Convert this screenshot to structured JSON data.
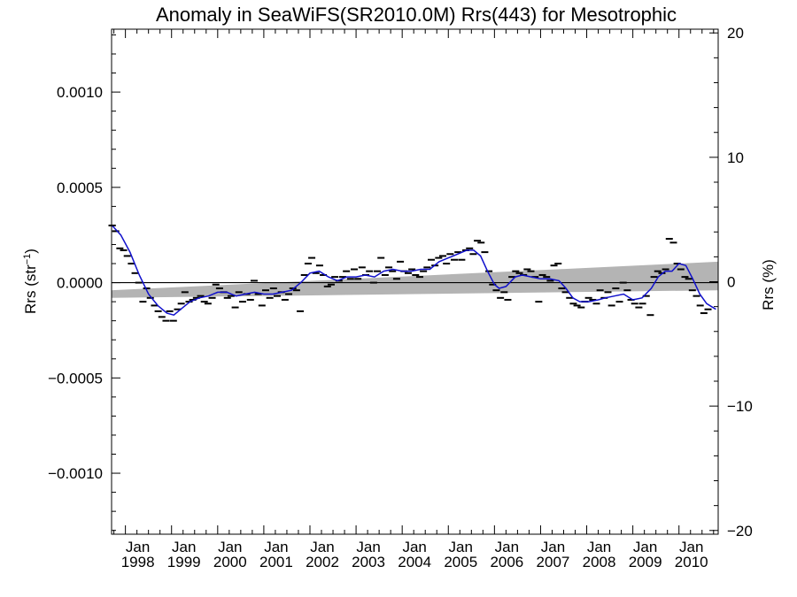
{
  "chart_data": {
    "type": "scatter",
    "title": "Anomaly in SeaWiFS(SR2010.0M) Rrs(443) for Mesotrophic",
    "ylabel_left": "Rrs (str",
    "ylabel_left_sup": "−1",
    "ylabel_left_close": ")",
    "ylabel_right": "Rrs (%)",
    "xlim": [
      1997.7,
      2010.85
    ],
    "ylim": [
      -0.00132,
      0.00133
    ],
    "ylim_right": [
      -20.3,
      20.3
    ],
    "yticks": [
      {
        "v": 0.001,
        "label": "0.0010"
      },
      {
        "v": 0.0005,
        "label": "0.0005"
      },
      {
        "v": 0.0,
        "label": "0.0000"
      },
      {
        "v": -0.0005,
        "label": "−0.0005"
      },
      {
        "v": -0.001,
        "label": "−0.0010"
      }
    ],
    "yticks_right": [
      {
        "v": 20,
        "label": "20"
      },
      {
        "v": 10,
        "label": "10"
      },
      {
        "v": 0,
        "label": "0"
      },
      {
        "v": -10,
        "label": "−10"
      },
      {
        "v": -20,
        "label": "−20"
      }
    ],
    "xticks": [
      {
        "v": 1998,
        "month": "Jan",
        "year": "1998"
      },
      {
        "v": 1999,
        "month": "Jan",
        "year": "1999"
      },
      {
        "v": 2000,
        "month": "Jan",
        "year": "2000"
      },
      {
        "v": 2001,
        "month": "Jan",
        "year": "2001"
      },
      {
        "v": 2002,
        "month": "Jan",
        "year": "2002"
      },
      {
        "v": 2003,
        "month": "Jan",
        "year": "2003"
      },
      {
        "v": 2004,
        "month": "Jan",
        "year": "2004"
      },
      {
        "v": 2005,
        "month": "Jan",
        "year": "2005"
      },
      {
        "v": 2006,
        "month": "Jan",
        "year": "2006"
      },
      {
        "v": 2007,
        "month": "Jan",
        "year": "2007"
      },
      {
        "v": 2008,
        "month": "Jan",
        "year": "2008"
      },
      {
        "v": 2009,
        "month": "Jan",
        "year": "2009"
      },
      {
        "v": 2010,
        "month": "Jan",
        "year": "2010"
      }
    ],
    "monthly_anomalies": [
      [
        1997.71,
        0.0003
      ],
      [
        1997.79,
        0.00027
      ],
      [
        1997.88,
        0.00018
      ],
      [
        1997.96,
        0.00017
      ],
      [
        1998.04,
        0.00014
      ],
      [
        1998.13,
        0.0001
      ],
      [
        1998.21,
        5e-05
      ],
      [
        1998.29,
        0.0
      ],
      [
        1998.38,
        -0.0001
      ],
      [
        1998.46,
        -3e-05
      ],
      [
        1998.54,
        -8e-05
      ],
      [
        1998.63,
        -0.00012
      ],
      [
        1998.71,
        -0.00015
      ],
      [
        1998.79,
        -0.00018
      ],
      [
        1998.88,
        -0.0002
      ],
      [
        1998.96,
        -0.00015
      ],
      [
        1999.04,
        -0.0002
      ],
      [
        1999.13,
        -0.00014
      ],
      [
        1999.21,
        -0.00011
      ],
      [
        1999.29,
        -5e-05
      ],
      [
        1999.38,
        -0.0001
      ],
      [
        1999.46,
        -9e-05
      ],
      [
        1999.54,
        -8e-05
      ],
      [
        1999.63,
        -7e-05
      ],
      [
        1999.71,
        -0.0001
      ],
      [
        1999.79,
        -0.00011
      ],
      [
        1999.88,
        -8e-05
      ],
      [
        1999.96,
        -1e-05
      ],
      [
        2000.04,
        -3e-05
      ],
      [
        2000.13,
        -5e-05
      ],
      [
        2000.21,
        -8e-05
      ],
      [
        2000.29,
        -7e-05
      ],
      [
        2000.38,
        -0.00013
      ],
      [
        2000.46,
        -5e-05
      ],
      [
        2000.54,
        -0.0001
      ],
      [
        2000.63,
        -6e-05
      ],
      [
        2000.71,
        -9e-05
      ],
      [
        2000.79,
        1e-05
      ],
      [
        2000.88,
        -6e-05
      ],
      [
        2000.96,
        -0.00012
      ],
      [
        2001.04,
        -4e-05
      ],
      [
        2001.13,
        -8e-05
      ],
      [
        2001.21,
        -3e-05
      ],
      [
        2001.29,
        -7e-05
      ],
      [
        2001.38,
        -5e-05
      ],
      [
        2001.46,
        -9e-05
      ],
      [
        2001.54,
        -6e-05
      ],
      [
        2001.63,
        -3e-05
      ],
      [
        2001.71,
        -4e-05
      ],
      [
        2001.79,
        -0.00015
      ],
      [
        2001.88,
        4e-05
      ],
      [
        2001.96,
        0.0001
      ],
      [
        2002.04,
        0.00013
      ],
      [
        2002.13,
        5e-05
      ],
      [
        2002.21,
        9e-05
      ],
      [
        2002.29,
        4e-05
      ],
      [
        2002.38,
        -2e-05
      ],
      [
        2002.46,
        -1e-05
      ],
      [
        2002.54,
        3e-05
      ],
      [
        2002.63,
        1e-05
      ],
      [
        2002.71,
        3e-05
      ],
      [
        2002.79,
        6e-05
      ],
      [
        2002.88,
        2e-05
      ],
      [
        2002.96,
        7e-05
      ],
      [
        2003.04,
        2e-05
      ],
      [
        2003.13,
        8e-05
      ],
      [
        2003.21,
        4e-05
      ],
      [
        2003.29,
        6e-05
      ],
      [
        2003.38,
        0.0
      ],
      [
        2003.46,
        6e-05
      ],
      [
        2003.54,
        0.00013
      ],
      [
        2003.63,
        4e-05
      ],
      [
        2003.71,
        8e-05
      ],
      [
        2003.79,
        6e-05
      ],
      [
        2003.88,
        2e-05
      ],
      [
        2003.96,
        0.00011
      ],
      [
        2004.04,
        6e-05
      ],
      [
        2004.13,
        5e-05
      ],
      [
        2004.21,
        7e-05
      ],
      [
        2004.29,
        4e-05
      ],
      [
        2004.38,
        3e-05
      ],
      [
        2004.46,
        6e-05
      ],
      [
        2004.54,
        8e-05
      ],
      [
        2004.63,
        0.00012
      ],
      [
        2004.71,
        9e-05
      ],
      [
        2004.79,
        0.00013
      ],
      [
        2004.88,
        0.00014
      ],
      [
        2004.96,
        0.0001
      ],
      [
        2005.04,
        0.00015
      ],
      [
        2005.13,
        0.00012
      ],
      [
        2005.21,
        0.00016
      ],
      [
        2005.29,
        0.00012
      ],
      [
        2005.38,
        0.00017
      ],
      [
        2005.46,
        0.00018
      ],
      [
        2005.54,
        0.00015
      ],
      [
        2005.63,
        0.00022
      ],
      [
        2005.71,
        0.00021
      ],
      [
        2005.79,
        0.00016
      ],
      [
        2005.88,
        6e-05
      ],
      [
        2005.96,
        -1e-05
      ],
      [
        2006.04,
        -4e-05
      ],
      [
        2006.13,
        -8e-05
      ],
      [
        2006.21,
        -5e-05
      ],
      [
        2006.29,
        -9e-05
      ],
      [
        2006.38,
        3e-05
      ],
      [
        2006.46,
        6e-05
      ],
      [
        2006.54,
        5e-05
      ],
      [
        2006.63,
        4e-05
      ],
      [
        2006.71,
        7e-05
      ],
      [
        2006.79,
        6e-05
      ],
      [
        2006.88,
        3e-05
      ],
      [
        2006.96,
        -0.0001
      ],
      [
        2007.04,
        4e-05
      ],
      [
        2007.13,
        3e-05
      ],
      [
        2007.21,
        1e-05
      ],
      [
        2007.29,
        9e-05
      ],
      [
        2007.38,
        0.0001
      ],
      [
        2007.46,
        -3e-05
      ],
      [
        2007.54,
        -5e-05
      ],
      [
        2007.63,
        -8e-05
      ],
      [
        2007.71,
        -0.00011
      ],
      [
        2007.79,
        -0.00012
      ],
      [
        2007.88,
        -0.00013
      ],
      [
        2007.96,
        -0.0001
      ],
      [
        2008.04,
        -8e-05
      ],
      [
        2008.13,
        -9e-05
      ],
      [
        2008.21,
        -0.00011
      ],
      [
        2008.29,
        -4e-05
      ],
      [
        2008.38,
        -8e-05
      ],
      [
        2008.46,
        -5e-05
      ],
      [
        2008.54,
        -0.00012
      ],
      [
        2008.63,
        -3e-05
      ],
      [
        2008.71,
        -0.0001
      ],
      [
        2008.79,
        0.0
      ],
      [
        2008.88,
        -4e-05
      ],
      [
        2008.96,
        -9e-05
      ],
      [
        2009.04,
        -0.00011
      ],
      [
        2009.13,
        -0.00013
      ],
      [
        2009.21,
        -0.00011
      ],
      [
        2009.29,
        -7e-05
      ],
      [
        2009.38,
        -0.00017
      ],
      [
        2009.46,
        3e-05
      ],
      [
        2009.54,
        6e-05
      ],
      [
        2009.63,
        5e-05
      ],
      [
        2009.71,
        7e-05
      ],
      [
        2009.79,
        0.00023
      ],
      [
        2009.88,
        0.00021
      ],
      [
        2009.96,
        0.0001
      ],
      [
        2010.04,
        7e-05
      ],
      [
        2010.13,
        3e-05
      ],
      [
        2010.21,
        2e-05
      ],
      [
        2010.29,
        -4e-05
      ],
      [
        2010.38,
        -7e-05
      ],
      [
        2010.46,
        -0.00012
      ],
      [
        2010.54,
        -0.00016
      ],
      [
        2010.63,
        -0.00014
      ]
    ],
    "running_mean": [
      [
        1997.71,
        0.0003
      ],
      [
        1997.9,
        0.00025
      ],
      [
        1998.1,
        0.00016
      ],
      [
        1998.3,
        4e-05
      ],
      [
        1998.5,
        -6e-05
      ],
      [
        1998.7,
        -0.00012
      ],
      [
        1998.9,
        -0.00016
      ],
      [
        1999.05,
        -0.00017
      ],
      [
        1999.2,
        -0.00014
      ],
      [
        1999.4,
        -0.0001
      ],
      [
        1999.6,
        -8e-05
      ],
      [
        1999.8,
        -7e-05
      ],
      [
        2000.0,
        -5e-05
      ],
      [
        2000.2,
        -5e-05
      ],
      [
        2000.4,
        -7e-05
      ],
      [
        2000.6,
        -6e-05
      ],
      [
        2000.8,
        -5e-05
      ],
      [
        2001.0,
        -6e-05
      ],
      [
        2001.2,
        -6e-05
      ],
      [
        2001.4,
        -5e-05
      ],
      [
        2001.6,
        -4e-05
      ],
      [
        2001.8,
        0.0
      ],
      [
        2002.0,
        5e-05
      ],
      [
        2002.2,
        6e-05
      ],
      [
        2002.4,
        3e-05
      ],
      [
        2002.6,
        1e-05
      ],
      [
        2002.8,
        3e-05
      ],
      [
        2003.0,
        3e-05
      ],
      [
        2003.2,
        4e-05
      ],
      [
        2003.4,
        3e-05
      ],
      [
        2003.6,
        6e-05
      ],
      [
        2003.8,
        7e-05
      ],
      [
        2004.0,
        6e-05
      ],
      [
        2004.2,
        6e-05
      ],
      [
        2004.4,
        7e-05
      ],
      [
        2004.6,
        7e-05
      ],
      [
        2004.8,
        0.00011
      ],
      [
        2005.0,
        0.00013
      ],
      [
        2005.2,
        0.00015
      ],
      [
        2005.4,
        0.00017
      ],
      [
        2005.55,
        0.00017
      ],
      [
        2005.7,
        0.00014
      ],
      [
        2005.85,
        6e-05
      ],
      [
        2006.0,
        -1e-05
      ],
      [
        2006.1,
        -3e-05
      ],
      [
        2006.25,
        -2e-05
      ],
      [
        2006.45,
        3e-05
      ],
      [
        2006.6,
        4e-05
      ],
      [
        2006.8,
        3e-05
      ],
      [
        2007.0,
        2e-05
      ],
      [
        2007.2,
        2e-05
      ],
      [
        2007.4,
        1e-05
      ],
      [
        2007.55,
        -3e-05
      ],
      [
        2007.7,
        -8e-05
      ],
      [
        2007.85,
        -0.0001
      ],
      [
        2008.05,
        -0.0001
      ],
      [
        2008.25,
        -9e-05
      ],
      [
        2008.4,
        -8e-05
      ],
      [
        2008.6,
        -7e-05
      ],
      [
        2008.8,
        -6e-05
      ],
      [
        2009.0,
        -9e-05
      ],
      [
        2009.2,
        -8e-05
      ],
      [
        2009.4,
        -3e-05
      ],
      [
        2009.55,
        3e-05
      ],
      [
        2009.7,
        6e-05
      ],
      [
        2009.85,
        6e-05
      ],
      [
        2010.0,
        0.0001
      ],
      [
        2010.15,
        9e-05
      ],
      [
        2010.3,
        2e-05
      ],
      [
        2010.45,
        -6e-05
      ],
      [
        2010.6,
        -0.00011
      ],
      [
        2010.8,
        -0.00014
      ]
    ],
    "trend_band": {
      "x": [
        1997.7,
        2010.85
      ],
      "upper": [
        -4e-05,
        0.00011
      ],
      "lower": [
        -8e-05,
        -4e-05
      ]
    },
    "zero_line": 0,
    "colors": {
      "running_mean": "#1010cc",
      "trend_band": "#b4b4b4",
      "markers": "#000000",
      "zero_line": "#000000"
    }
  }
}
